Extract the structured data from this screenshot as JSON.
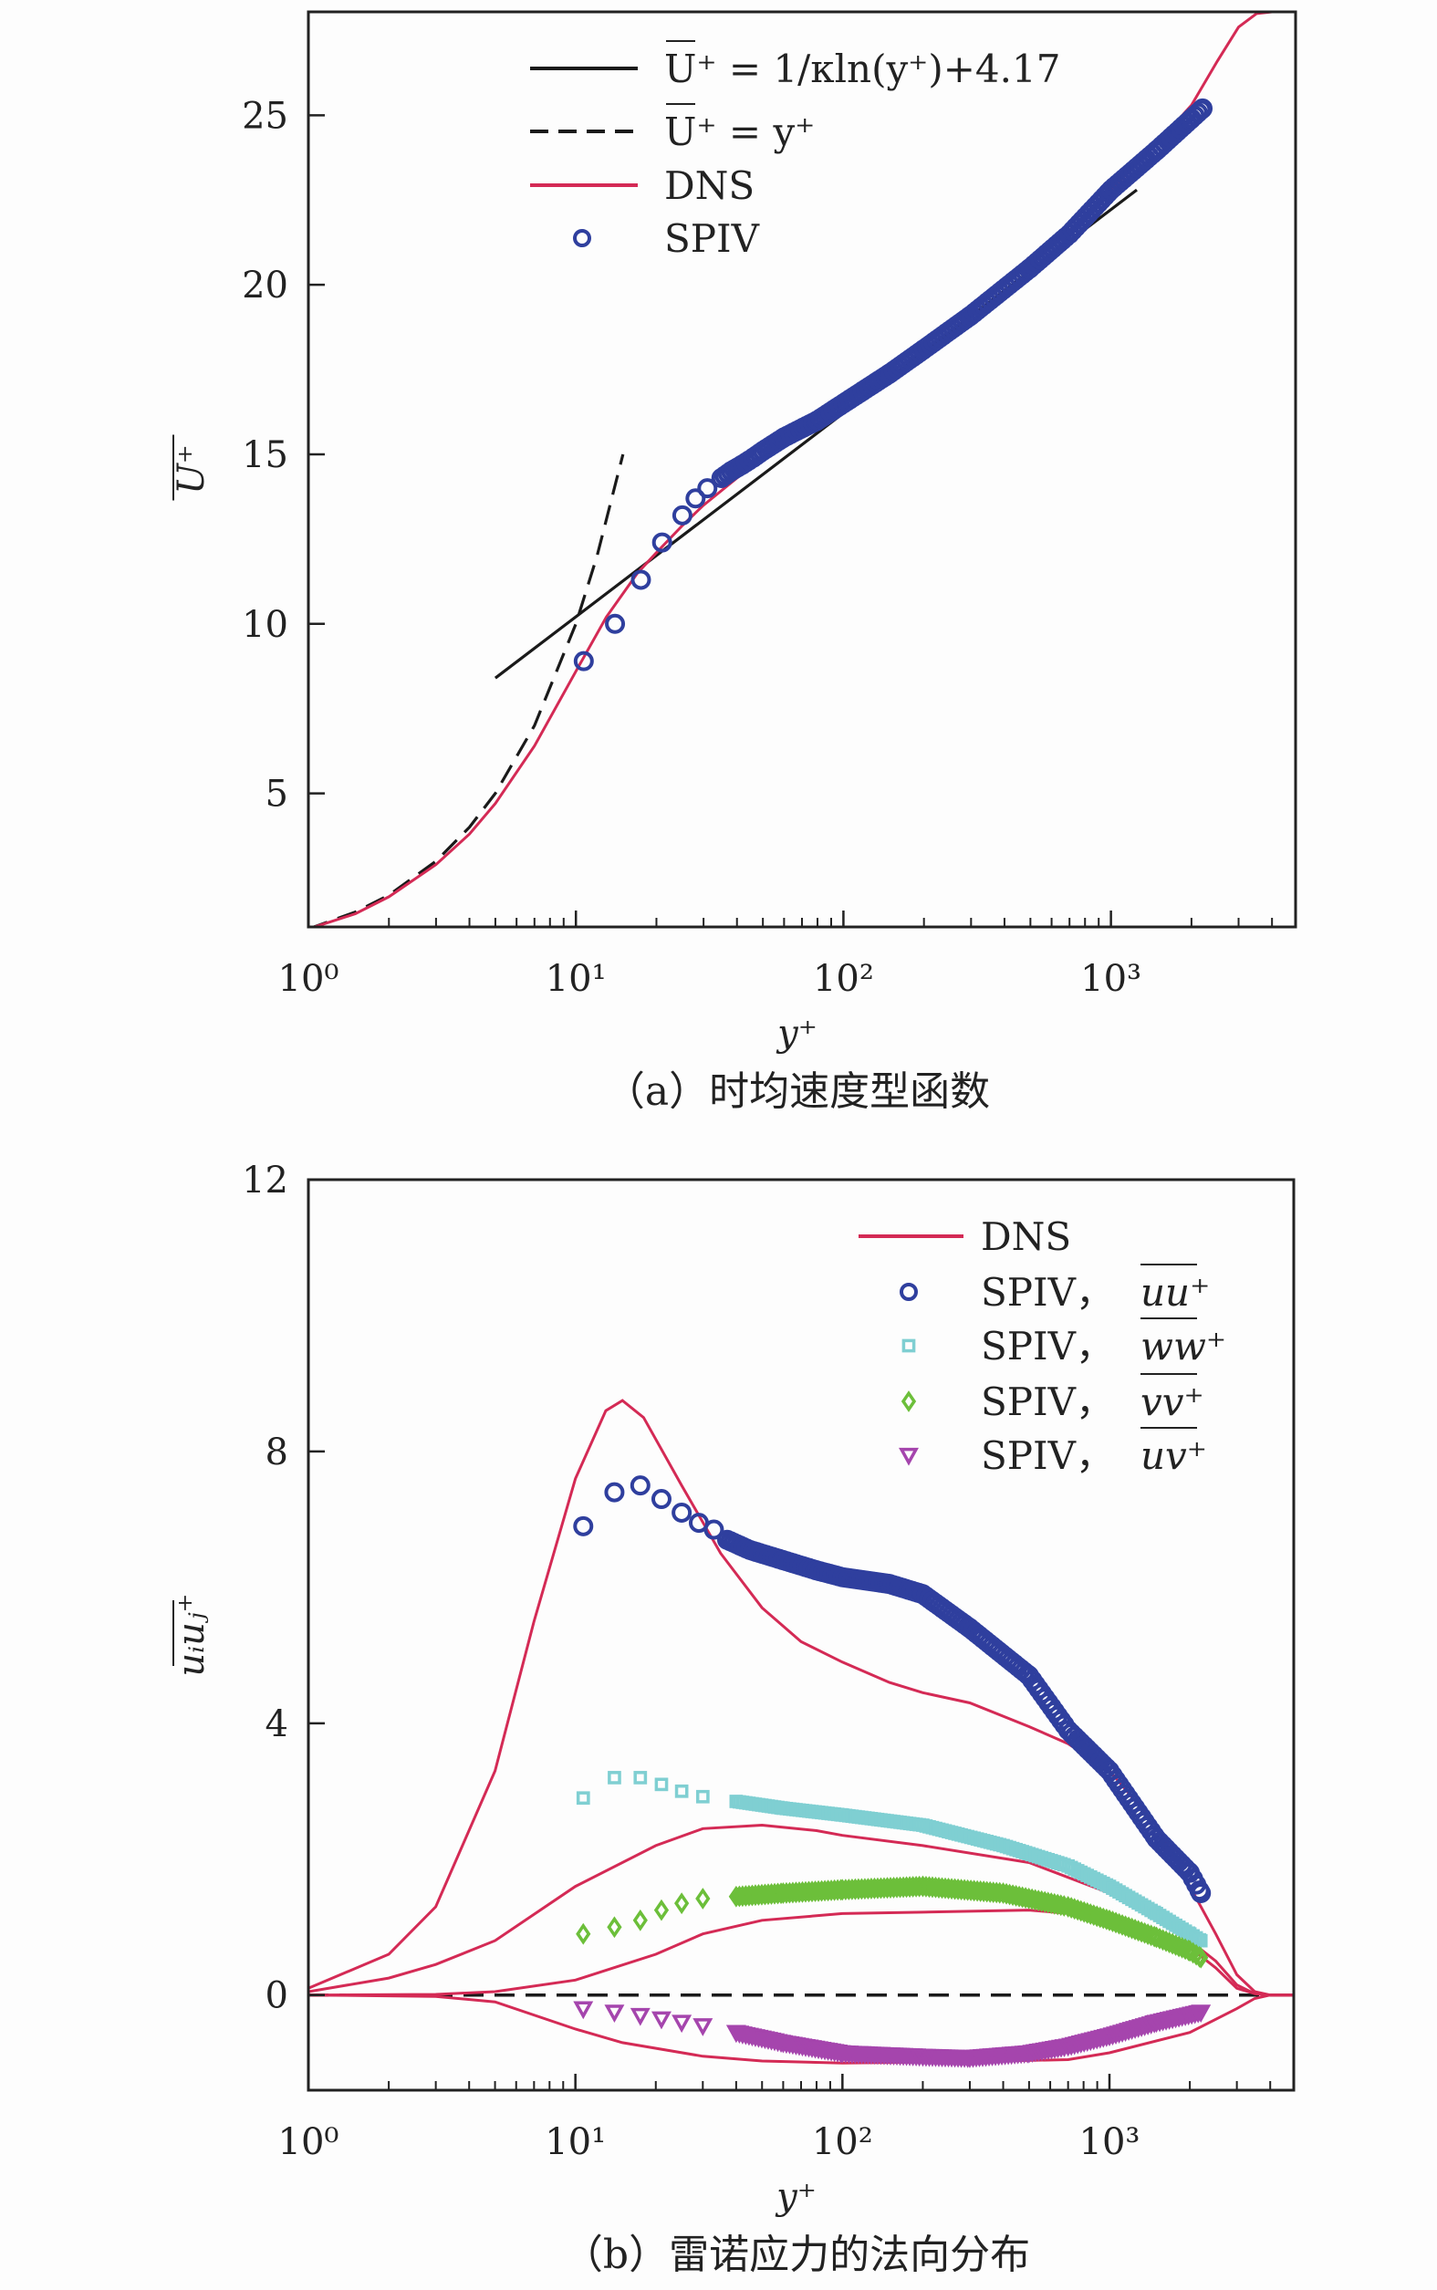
{
  "chart_data": [
    {
      "type": "line",
      "title": "",
      "caption": "（a）时均速度型函数",
      "xlabel": "y⁺",
      "ylabel": "U⁺",
      "xscale": "log",
      "xlim": [
        1,
        4900
      ],
      "ylim": [
        1.06,
        28.05
      ],
      "xticks": [
        {
          "v": 1,
          "label": "10⁰"
        },
        {
          "v": 10,
          "label": "10¹"
        },
        {
          "v": 100,
          "label": "10²"
        },
        {
          "v": 1000,
          "label": "10³"
        }
      ],
      "yticks": [
        {
          "v": 5,
          "label": "5"
        },
        {
          "v": 10,
          "label": "10"
        },
        {
          "v": 15,
          "label": "15"
        },
        {
          "v": 20,
          "label": "20"
        },
        {
          "v": 25,
          "label": "25"
        }
      ],
      "legend_position": "top-left",
      "colors": {
        "log": "#1a1a1a",
        "visc": "#1a1a1a",
        "dns": "#d42a55",
        "spiv": "#2f3f9e"
      },
      "series": [
        {
          "name": "U⁺ = 1/κln(y⁺)+4.17",
          "key": "log",
          "style": "solid",
          "x": [
            5,
            1250
          ],
          "y": [
            8.4,
            22.8
          ]
        },
        {
          "name": "U⁺ = y⁺",
          "key": "visc",
          "style": "dashed",
          "x": [
            1,
            1.5,
            2,
            3,
            4,
            5,
            7,
            10,
            12,
            15
          ],
          "y": [
            1,
            1.5,
            2,
            3,
            4,
            5,
            7,
            10,
            12,
            15
          ]
        },
        {
          "name": "DNS",
          "key": "dns",
          "style": "solid",
          "x": [
            1,
            1.5,
            2,
            3,
            4,
            5,
            7,
            10,
            13,
            17,
            20,
            25,
            30,
            40,
            50,
            70,
            100,
            150,
            200,
            300,
            500,
            700,
            1000,
            1500,
            2000,
            2500,
            3000,
            3500,
            4000,
            4900
          ],
          "y": [
            1,
            1.45,
            1.95,
            2.9,
            3.8,
            4.7,
            6.4,
            8.6,
            10.2,
            11.5,
            12.1,
            12.9,
            13.5,
            14.3,
            14.9,
            15.7,
            16.6,
            17.6,
            18.3,
            19.3,
            20.6,
            21.6,
            22.8,
            24.2,
            25.3,
            26.6,
            27.6,
            28.0,
            28.05,
            28.05
          ]
        },
        {
          "name": "SPIV",
          "key": "spiv",
          "style": "marker-circle",
          "x": [
            10.7,
            14,
            17.5,
            21,
            25,
            28,
            31,
            35,
            38,
            42,
            46,
            50,
            60,
            80,
            100,
            150,
            200,
            300,
            500,
            700,
            1000,
            1500,
            2000,
            2200
          ],
          "y": [
            8.9,
            10.0,
            11.3,
            12.4,
            13.2,
            13.7,
            14.0,
            14.3,
            14.5,
            14.7,
            14.9,
            15.1,
            15.5,
            16.0,
            16.5,
            17.4,
            18.1,
            19.1,
            20.5,
            21.5,
            22.8,
            24.0,
            24.9,
            25.2
          ]
        }
      ]
    },
    {
      "type": "line",
      "title": "",
      "caption": "（b）雷诺应力的法向分布",
      "xlabel": "y⁺",
      "ylabel": "uᵢuⱼ⁺",
      "xscale": "log",
      "xlim": [
        1,
        4900
      ],
      "ylim": [
        -1.4,
        12
      ],
      "xticks": [
        {
          "v": 1,
          "label": "10⁰"
        },
        {
          "v": 10,
          "label": "10¹"
        },
        {
          "v": 100,
          "label": "10²"
        },
        {
          "v": 1000,
          "label": "10³"
        }
      ],
      "yticks": [
        {
          "v": 0,
          "label": "0"
        },
        {
          "v": 4,
          "label": "4"
        },
        {
          "v": 8,
          "label": "8"
        },
        {
          "v": 12,
          "label": "12"
        }
      ],
      "legend_position": "top-right",
      "colors": {
        "dns": "#d42a55",
        "uu": "#2f3f9e",
        "ww": "#7fcfd2",
        "vv": "#6cbf3a",
        "uv": "#a545ad",
        "zero": "#1a1a1a"
      },
      "legend": [
        {
          "key": "dns",
          "label": "DNS",
          "math": ""
        },
        {
          "key": "uu",
          "label": "SPIV，",
          "math": "uu⁺"
        },
        {
          "key": "ww",
          "label": "SPIV，",
          "math": "ww⁺"
        },
        {
          "key": "vv",
          "label": "SPIV，",
          "math": "vv⁺"
        },
        {
          "key": "uv",
          "label": "SPIV，",
          "math": "uv⁺"
        }
      ],
      "dns_series": [
        {
          "name": "DNS uu",
          "x": [
            1,
            2,
            3,
            5,
            7,
            10,
            13,
            15,
            18,
            25,
            35,
            50,
            70,
            100,
            150,
            200,
            300,
            500,
            700,
            1000,
            1500,
            2000,
            2500,
            3000,
            3500,
            4000,
            4900
          ],
          "y": [
            0.1,
            0.6,
            1.3,
            3.3,
            5.5,
            7.6,
            8.6,
            8.75,
            8.5,
            7.5,
            6.5,
            5.7,
            5.2,
            4.9,
            4.6,
            4.45,
            4.3,
            3.95,
            3.7,
            3.3,
            2.5,
            1.6,
            0.9,
            0.3,
            0.05,
            0,
            0
          ]
        },
        {
          "name": "DNS ww",
          "x": [
            1,
            2,
            3,
            5,
            10,
            20,
            30,
            50,
            80,
            100,
            200,
            500,
            1000,
            1500,
            2000,
            2500,
            3000,
            3500,
            4000,
            4900
          ],
          "y": [
            0.05,
            0.25,
            0.45,
            0.8,
            1.6,
            2.2,
            2.45,
            2.5,
            2.42,
            2.35,
            2.2,
            1.95,
            1.5,
            1.1,
            0.8,
            0.5,
            0.15,
            0.02,
            0,
            0
          ]
        },
        {
          "name": "DNS vv",
          "x": [
            1,
            3,
            5,
            10,
            20,
            30,
            50,
            100,
            200,
            500,
            1000,
            1500,
            2000,
            2500,
            3000,
            3500,
            4000,
            4900
          ],
          "y": [
            0,
            0.01,
            0.05,
            0.22,
            0.6,
            0.9,
            1.1,
            1.2,
            1.22,
            1.25,
            1.15,
            0.95,
            0.7,
            0.4,
            0.1,
            0.02,
            0,
            0
          ]
        },
        {
          "name": "DNS uv",
          "x": [
            1,
            3,
            5,
            10,
            15,
            30,
            50,
            100,
            300,
            700,
            1000,
            2000,
            3000,
            3500,
            4000,
            4900
          ],
          "y": [
            0,
            -0.02,
            -0.1,
            -0.5,
            -0.7,
            -0.9,
            -0.97,
            -1.0,
            -0.98,
            -0.95,
            -0.85,
            -0.55,
            -0.2,
            -0.05,
            0,
            0
          ]
        }
      ],
      "spiv_series": [
        {
          "name": "SPIV uu",
          "key": "uu",
          "marker": "circle",
          "x": [
            10.7,
            14,
            17.5,
            21,
            25,
            29,
            33,
            37,
            45,
            60,
            80,
            100,
            150,
            200,
            300,
            500,
            700,
            1000,
            1500,
            2000,
            2200
          ],
          "y": [
            6.9,
            7.4,
            7.5,
            7.3,
            7.1,
            6.95,
            6.85,
            6.7,
            6.55,
            6.4,
            6.25,
            6.15,
            6.05,
            5.9,
            5.4,
            4.7,
            3.9,
            3.3,
            2.3,
            1.8,
            1.5
          ]
        },
        {
          "name": "SPIV ww",
          "key": "ww",
          "marker": "square",
          "x": [
            10.7,
            14,
            17.5,
            21,
            25,
            30,
            40,
            60,
            100,
            200,
            400,
            700,
            1000,
            1500,
            2000,
            2200
          ],
          "y": [
            2.9,
            3.2,
            3.2,
            3.1,
            3.0,
            2.92,
            2.85,
            2.75,
            2.65,
            2.5,
            2.2,
            1.9,
            1.6,
            1.2,
            0.9,
            0.8
          ]
        },
        {
          "name": "SPIV vv",
          "key": "vv",
          "marker": "diamond",
          "x": [
            10.7,
            14,
            17.5,
            21,
            25,
            30,
            40,
            60,
            100,
            200,
            400,
            700,
            1000,
            1500,
            2000,
            2200
          ],
          "y": [
            0.9,
            1.0,
            1.1,
            1.25,
            1.35,
            1.42,
            1.45,
            1.5,
            1.55,
            1.6,
            1.5,
            1.3,
            1.1,
            0.85,
            0.65,
            0.55
          ]
        },
        {
          "name": "SPIV uv",
          "key": "uv",
          "marker": "triangle",
          "x": [
            10.7,
            14,
            17.5,
            21,
            25,
            30,
            40,
            60,
            100,
            200,
            300,
            500,
            700,
            1000,
            1500,
            2200
          ],
          "y": [
            -0.2,
            -0.25,
            -0.3,
            -0.35,
            -0.4,
            -0.45,
            -0.55,
            -0.7,
            -0.85,
            -0.9,
            -0.92,
            -0.85,
            -0.75,
            -0.6,
            -0.4,
            -0.25
          ]
        }
      ]
    }
  ]
}
